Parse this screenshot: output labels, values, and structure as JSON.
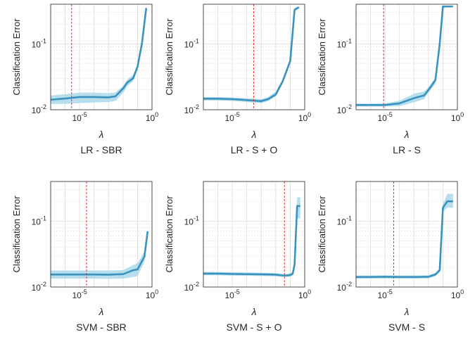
{
  "figure": {
    "ylabel": "Classification Error",
    "xlabel": "λ",
    "x_ticks": [
      {
        "base": "10",
        "exp": "-5"
      },
      {
        "base": "10",
        "exp": "0"
      }
    ],
    "y_ticks": [
      {
        "base": "10",
        "exp": "-2"
      },
      {
        "base": "10",
        "exp": "-1"
      }
    ],
    "colors": {
      "line": "#3a93bf",
      "band": "#a9d8ea",
      "ref_line": "#e3342f",
      "grid": "#dcdcdc"
    }
  },
  "chart_data": [
    {
      "type": "line",
      "title": "LR - SBR",
      "x_scale": "log",
      "y_scale": "log",
      "xlim": [
        1e-07,
        1
      ],
      "ylim": [
        0.01,
        0.4
      ],
      "ref_x": 2.8e-06,
      "x": [
        1e-07,
        1e-06,
        1e-05,
        0.0001,
        0.001,
        0.003,
        0.01,
        0.02,
        0.05,
        0.1,
        0.2,
        0.4
      ],
      "y": [
        0.0142,
        0.0148,
        0.0156,
        0.0156,
        0.0154,
        0.016,
        0.021,
        0.026,
        0.03,
        0.045,
        0.1,
        0.35
      ],
      "lower": [
        0.0122,
        0.0123,
        0.0126,
        0.0129,
        0.0131,
        0.0136,
        0.018,
        0.023,
        0.027,
        0.041,
        0.09,
        0.33
      ],
      "upper": [
        0.0165,
        0.0172,
        0.0182,
        0.0182,
        0.0178,
        0.0184,
        0.023,
        0.029,
        0.034,
        0.049,
        0.11,
        0.37
      ]
    },
    {
      "type": "line",
      "title": "LR - S + O",
      "x_scale": "log",
      "y_scale": "log",
      "xlim": [
        1e-07,
        1
      ],
      "ylim": [
        0.01,
        0.4
      ],
      "ref_x": 0.0003,
      "x": [
        1e-07,
        1e-06,
        1e-05,
        0.0001,
        0.001,
        0.003,
        0.01,
        0.03,
        0.1,
        0.2,
        0.4
      ],
      "y": [
        0.0147,
        0.0147,
        0.0145,
        0.014,
        0.0135,
        0.0145,
        0.017,
        0.027,
        0.055,
        0.33,
        0.36
      ],
      "lower": [
        0.0138,
        0.0138,
        0.0136,
        0.0131,
        0.0126,
        0.0135,
        0.016,
        0.025,
        0.052,
        0.31,
        0.35
      ],
      "upper": [
        0.0156,
        0.0156,
        0.0154,
        0.0149,
        0.0145,
        0.0156,
        0.019,
        0.029,
        0.058,
        0.35,
        0.37
      ]
    },
    {
      "type": "line",
      "title": "LR - S",
      "x_scale": "log",
      "y_scale": "log",
      "xlim": [
        1e-07,
        1
      ],
      "ylim": [
        0.01,
        0.4
      ],
      "ref_x": 8e-06,
      "x": [
        1e-07,
        1e-06,
        1e-05,
        0.0001,
        0.001,
        0.005,
        0.01,
        0.03,
        0.06,
        0.1,
        0.2,
        0.5
      ],
      "y": [
        0.0118,
        0.0118,
        0.0118,
        0.0125,
        0.015,
        0.0165,
        0.02,
        0.028,
        0.1,
        0.37,
        0.37,
        0.37
      ],
      "lower": [
        0.0112,
        0.0112,
        0.0112,
        0.0113,
        0.013,
        0.0145,
        0.018,
        0.025,
        0.09,
        0.36,
        0.36,
        0.36
      ],
      "upper": [
        0.0124,
        0.0124,
        0.0125,
        0.0137,
        0.0175,
        0.019,
        0.022,
        0.031,
        0.11,
        0.38,
        0.38,
        0.38
      ]
    },
    {
      "type": "line",
      "title": "SVM - SBR",
      "x_scale": "log",
      "y_scale": "log",
      "xlim": [
        1e-07,
        1
      ],
      "ylim": [
        0.01,
        0.4
      ],
      "ref_x": 3e-05,
      "x": [
        1e-07,
        1e-06,
        1e-05,
        0.0001,
        0.001,
        0.01,
        0.05,
        0.1,
        0.3,
        0.5
      ],
      "y": [
        0.0155,
        0.0155,
        0.0155,
        0.0155,
        0.0154,
        0.0157,
        0.018,
        0.0185,
        0.029,
        0.07
      ],
      "lower": [
        0.0134,
        0.0134,
        0.0134,
        0.0134,
        0.0133,
        0.0134,
        0.0142,
        0.0146,
        0.024,
        0.062
      ],
      "upper": [
        0.0178,
        0.0178,
        0.0178,
        0.0178,
        0.0178,
        0.0181,
        0.0215,
        0.023,
        0.034,
        0.078
      ]
    },
    {
      "type": "line",
      "title": "SVM - S + O",
      "x_scale": "log",
      "y_scale": "log",
      "xlim": [
        1e-07,
        1
      ],
      "ylim": [
        0.01,
        0.4
      ],
      "ref_x": 0.04,
      "x": [
        1e-07,
        1e-06,
        1e-05,
        0.0001,
        0.001,
        0.01,
        0.03,
        0.06,
        0.1,
        0.15,
        0.2,
        0.3,
        0.5
      ],
      "y": [
        0.016,
        0.016,
        0.0158,
        0.0157,
        0.0156,
        0.0154,
        0.015,
        0.015,
        0.0152,
        0.016,
        0.022,
        0.17,
        0.17
      ],
      "lower": [
        0.0151,
        0.0151,
        0.0149,
        0.0148,
        0.0147,
        0.0145,
        0.0142,
        0.0142,
        0.0143,
        0.015,
        0.02,
        0.11,
        0.11
      ],
      "upper": [
        0.0169,
        0.0169,
        0.0167,
        0.0166,
        0.0165,
        0.0163,
        0.0158,
        0.0158,
        0.0162,
        0.017,
        0.024,
        0.23,
        0.23
      ]
    },
    {
      "type": "line",
      "title": "SVM - S",
      "x_scale": "log",
      "y_scale": "log",
      "xlim": [
        1e-07,
        1
      ],
      "ylim": [
        0.01,
        0.4
      ],
      "ref_x": 4e-05,
      "x": [
        1e-07,
        1e-06,
        1e-05,
        0.0001,
        0.001,
        0.01,
        0.03,
        0.06,
        0.1,
        0.2,
        0.5
      ],
      "y": [
        0.0142,
        0.0142,
        0.0143,
        0.0142,
        0.0142,
        0.0143,
        0.0155,
        0.018,
        0.16,
        0.2,
        0.2
      ],
      "lower": [
        0.0134,
        0.0134,
        0.0135,
        0.0134,
        0.0134,
        0.0135,
        0.0146,
        0.0168,
        0.14,
        0.16,
        0.16
      ],
      "upper": [
        0.015,
        0.015,
        0.0151,
        0.015,
        0.015,
        0.0151,
        0.0164,
        0.0192,
        0.18,
        0.26,
        0.26
      ]
    }
  ]
}
